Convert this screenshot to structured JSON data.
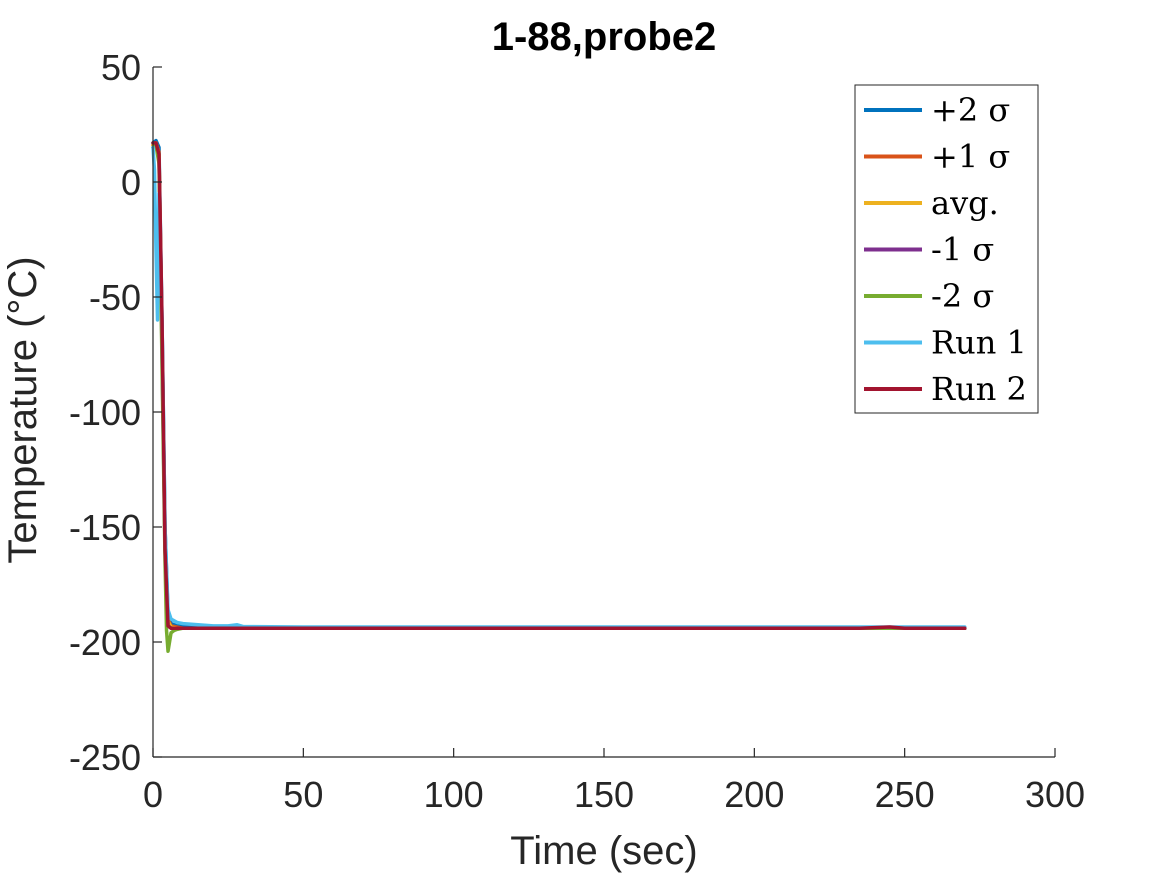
{
  "chart_data": {
    "type": "line",
    "title": "1-88,probe2",
    "xlabel": "Time (sec)",
    "ylabel": "Temperature (°C)",
    "xlim": [
      0,
      300
    ],
    "ylim": [
      -250,
      50
    ],
    "xticks": [
      0,
      50,
      100,
      150,
      200,
      250,
      300
    ],
    "yticks": [
      -250,
      -200,
      -150,
      -100,
      -50,
      0,
      50
    ],
    "xtick_labels": [
      "0",
      "50",
      "100",
      "150",
      "200",
      "250",
      "300"
    ],
    "ytick_labels": [
      "-250",
      "-200",
      "-150",
      "-100",
      "-50",
      "0",
      "50"
    ],
    "grid": false,
    "legend_position": "top-right",
    "series": [
      {
        "name": "+2 σ",
        "legend_label": "+2 σ",
        "color": "#0072BD",
        "x": [
          0,
          1,
          2,
          3,
          4,
          5,
          6,
          8,
          10,
          15,
          20,
          30,
          50,
          100,
          150,
          200,
          250,
          270
        ],
        "y": [
          17,
          18,
          15,
          -60,
          -150,
          -188,
          -192,
          -193,
          -193,
          -193.5,
          -194,
          -194,
          -194,
          -194,
          -194,
          -194,
          -194,
          -194
        ]
      },
      {
        "name": "+1 σ",
        "legend_label": "+1 σ",
        "color": "#D95319",
        "x": [
          0,
          1,
          2,
          3,
          4,
          5,
          6,
          8,
          10,
          15,
          20,
          30,
          50,
          100,
          150,
          200,
          250,
          270
        ],
        "y": [
          16,
          17,
          13,
          -65,
          -155,
          -190,
          -193,
          -193.5,
          -194,
          -194,
          -194,
          -194,
          -194,
          -194,
          -194,
          -194,
          -194,
          -194
        ]
      },
      {
        "name": "avg.",
        "legend_label": "avg.",
        "color": "#EDB120",
        "x": [
          0,
          1,
          2,
          3,
          4,
          5,
          6,
          8,
          10,
          15,
          20,
          30,
          50,
          100,
          150,
          200,
          250,
          270
        ],
        "y": [
          16,
          17,
          12,
          -70,
          -158,
          -191,
          -193.5,
          -194,
          -194,
          -194,
          -194,
          -194,
          -194,
          -194,
          -194,
          -194,
          -194,
          -194
        ]
      },
      {
        "name": "-1 σ",
        "legend_label": "-1 σ",
        "color": "#7E2F8E",
        "x": [
          0,
          1,
          2,
          3,
          4,
          5,
          6,
          8,
          10,
          15,
          20,
          30,
          50,
          100,
          150,
          200,
          250,
          270
        ],
        "y": [
          15,
          16,
          10,
          -75,
          -160,
          -193,
          -194,
          -194,
          -194,
          -194,
          -194,
          -194,
          -194,
          -194,
          -194,
          -194,
          -194,
          -194
        ]
      },
      {
        "name": "-2 σ",
        "legend_label": "-2 σ",
        "color": "#77AC30",
        "x": [
          0,
          1,
          2,
          3,
          4,
          4.5,
          5,
          5.5,
          6,
          7,
          8,
          10,
          15,
          20,
          30,
          50,
          100,
          150,
          200,
          250,
          270
        ],
        "y": [
          15,
          16,
          8,
          -80,
          -165,
          -195,
          -204,
          -200,
          -196,
          -195,
          -194.5,
          -194,
          -194,
          -194,
          -194,
          -194,
          -194,
          -194,
          -194,
          -194,
          -194
        ]
      },
      {
        "name": "Run 1",
        "legend_label": "Run 1",
        "color": "#4DBEEE",
        "x": [
          0,
          0.5,
          1,
          1.5,
          2,
          3,
          4,
          5,
          6,
          8,
          10,
          15,
          20,
          25,
          28,
          30,
          50,
          100,
          150,
          200,
          250,
          270
        ],
        "y": [
          15,
          5,
          -30,
          -60,
          -5,
          -60,
          -150,
          -186,
          -190,
          -191.5,
          -192,
          -192.5,
          -193,
          -193,
          -192.5,
          -193.3,
          -193.5,
          -193.5,
          -193.5,
          -193.5,
          -193.5,
          -193.5
        ]
      },
      {
        "name": "Run 2",
        "legend_label": "Run 2",
        "color": "#A2142F",
        "x": [
          0,
          1,
          2,
          3,
          4,
          5,
          6,
          8,
          10,
          15,
          20,
          30,
          50,
          100,
          150,
          200,
          235,
          245,
          250,
          270
        ],
        "y": [
          17,
          17,
          12,
          -60,
          -160,
          -193,
          -194,
          -194,
          -194,
          -194,
          -194,
          -194,
          -194,
          -194,
          -194,
          -194,
          -194,
          -193.5,
          -194,
          -194
        ]
      }
    ]
  }
}
